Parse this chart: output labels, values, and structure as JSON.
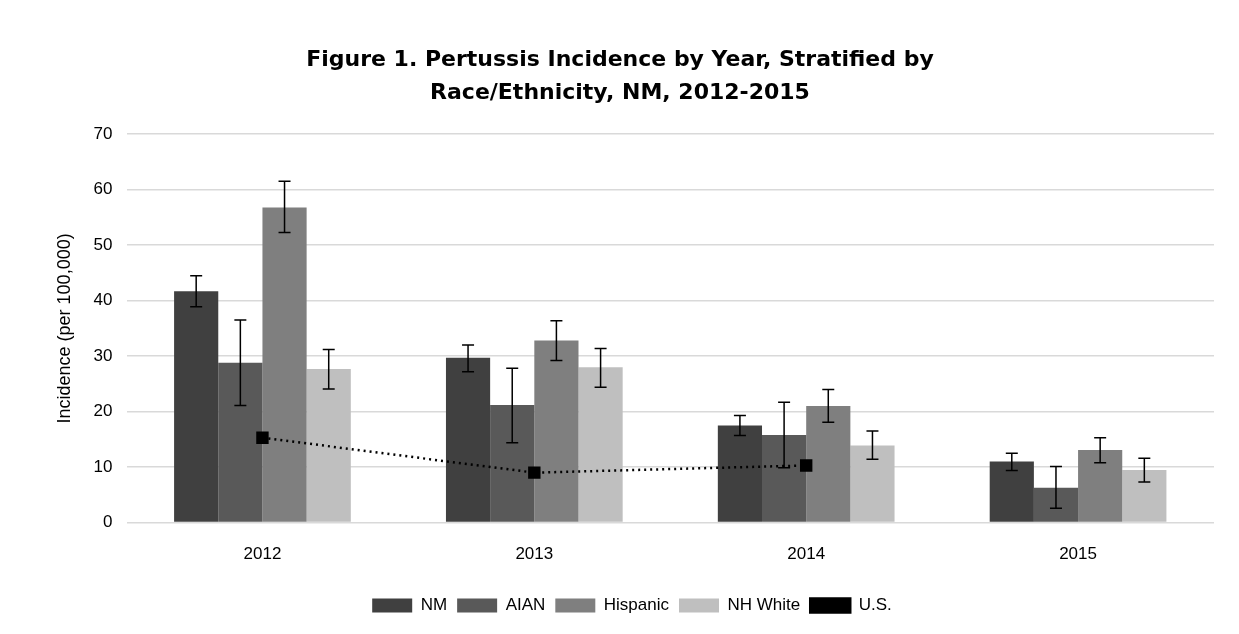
{
  "chart_data": {
    "type": "bar",
    "title": "Figure 1. Pertussis Incidence by Year, Stratified by Race/Ethnicity, NM, 2012-2015",
    "ylabel": "Incidence (per 100,000)",
    "categories": [
      "2012",
      "2013",
      "2014",
      "2015"
    ],
    "series": [
      {
        "name": "NM",
        "color": "#404040",
        "values": [
          41.7,
          29.7,
          17.5,
          11.0
        ],
        "errors": [
          [
            38.9,
            44.5
          ],
          [
            27.2,
            32.0
          ],
          [
            15.7,
            19.3
          ],
          [
            9.4,
            12.5
          ]
        ]
      },
      {
        "name": "AIAN",
        "color": "#595959",
        "values": [
          28.8,
          21.2,
          15.8,
          6.3
        ],
        "errors": [
          [
            21.1,
            36.5
          ],
          [
            14.4,
            27.8
          ],
          [
            9.9,
            21.7
          ],
          [
            2.6,
            10.1
          ]
        ]
      },
      {
        "name": "Hispanic",
        "color": "#7f7f7f",
        "values": [
          56.8,
          32.8,
          21.0,
          13.1
        ],
        "errors": [
          [
            52.3,
            61.5
          ],
          [
            29.2,
            36.4
          ],
          [
            18.1,
            24.0
          ],
          [
            10.8,
            15.3
          ]
        ]
      },
      {
        "name": "NH White",
        "color": "#bfbfbf",
        "values": [
          27.7,
          28.0,
          13.9,
          9.5
        ],
        "errors": [
          [
            24.1,
            31.2
          ],
          [
            24.4,
            31.4
          ],
          [
            11.4,
            16.5
          ],
          [
            7.3,
            11.6
          ]
        ]
      },
      {
        "name": "U.S.",
        "type": "line",
        "color": "#000000",
        "values": [
          15.3,
          9.0,
          10.3,
          null
        ],
        "marker": "square",
        "line_style": "dotted"
      }
    ],
    "ylim": [
      0,
      70
    ],
    "yticks": [
      0,
      10,
      20,
      30,
      40,
      50,
      60,
      70
    ],
    "grid": "y",
    "legend": "bottom"
  }
}
